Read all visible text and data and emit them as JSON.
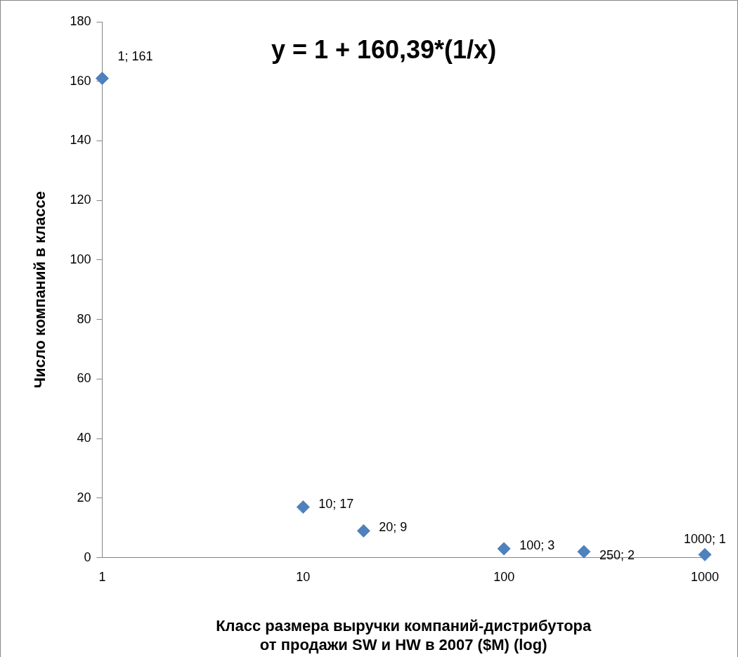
{
  "chart_data": {
    "type": "scatter",
    "xlabel": "Класс размера выручки компаний-дистрибутора от продажи SW и HW в 2007 ($M) (log)",
    "ylabel": "Число компаний в классе",
    "x": [
      1,
      10,
      20,
      100,
      250,
      1000
    ],
    "values": [
      161,
      17,
      9,
      3,
      2,
      1
    ],
    "value_labels": [
      "1; 161",
      "10; 17",
      "20; 9",
      "100; 3",
      "250; 2",
      "1000; 1"
    ],
    "color": "#4f81bd",
    "marker": "diamond",
    "log": "x",
    "grid": false,
    "legend": false,
    "xlim": [
      1,
      1000
    ],
    "xticks": [
      1,
      10,
      100,
      1000
    ],
    "ylim": [
      0,
      180
    ],
    "yticks": [
      0,
      20,
      40,
      60,
      80,
      100,
      120,
      140,
      160,
      180
    ],
    "annotations": [
      "y = 1 + 160,39*(1/x)"
    ]
  }
}
